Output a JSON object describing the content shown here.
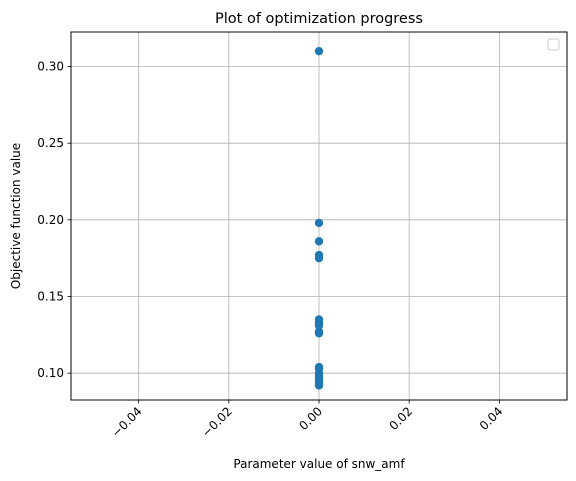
{
  "chart_data": {
    "type": "scatter",
    "title": "Plot of optimization progress",
    "xlabel": "Parameter value of snw_amf",
    "ylabel": "Objective function value",
    "xlim": [
      -0.055,
      0.055
    ],
    "ylim": [
      0.0825,
      0.3225
    ],
    "x_ticks": [
      -0.04,
      -0.02,
      0.0,
      0.02,
      0.04
    ],
    "x_tick_labels": [
      "−0.04",
      "−0.02",
      "0.00",
      "0.02",
      "0.04"
    ],
    "y_ticks": [
      0.1,
      0.15,
      0.2,
      0.25,
      0.3
    ],
    "y_tick_labels": [
      "0.10",
      "0.15",
      "0.20",
      "0.25",
      "0.30"
    ],
    "x_tick_rotation_deg": 45,
    "grid": true,
    "legend": {
      "placement": "top-right",
      "entries": []
    },
    "colors": {
      "marker": "#1f77b4",
      "grid": "#b0b0b0",
      "axes": "#000000"
    },
    "series": [
      {
        "points": [
          {
            "x": 0.0,
            "y": 0.31
          },
          {
            "x": 0.0,
            "y": 0.198
          },
          {
            "x": 0.0,
            "y": 0.186
          },
          {
            "x": 0.0,
            "y": 0.177
          },
          {
            "x": 0.0,
            "y": 0.175
          },
          {
            "x": 0.0,
            "y": 0.135
          },
          {
            "x": 0.0,
            "y": 0.133
          },
          {
            "x": 0.0,
            "y": 0.131
          },
          {
            "x": 0.0,
            "y": 0.127
          },
          {
            "x": 0.0,
            "y": 0.126
          },
          {
            "x": 0.0,
            "y": 0.104
          },
          {
            "x": 0.0,
            "y": 0.103
          },
          {
            "x": 0.0,
            "y": 0.1
          },
          {
            "x": 0.0,
            "y": 0.098
          },
          {
            "x": 0.0,
            "y": 0.096
          },
          {
            "x": 0.0,
            "y": 0.095
          },
          {
            "x": 0.0,
            "y": 0.093
          },
          {
            "x": 0.0,
            "y": 0.092
          }
        ]
      }
    ]
  }
}
